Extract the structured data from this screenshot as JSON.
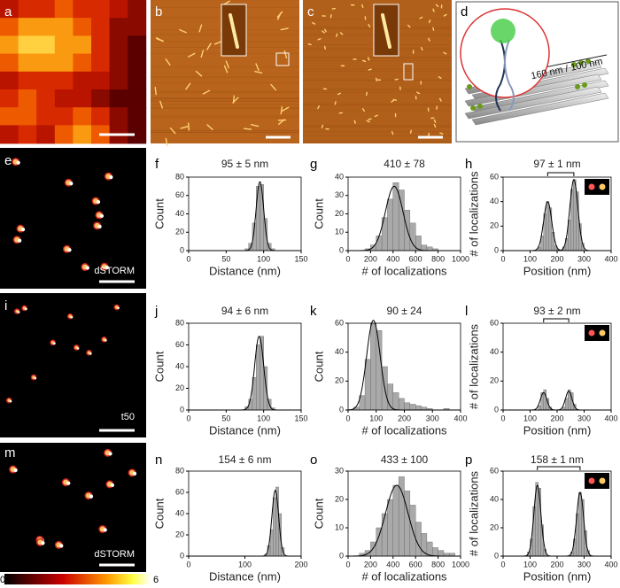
{
  "panel_labels": [
    "a",
    "b",
    "c",
    "d",
    "e",
    "f",
    "g",
    "h",
    "i",
    "j",
    "k",
    "l",
    "m",
    "n",
    "o",
    "p"
  ],
  "diagram": {
    "label": "160 nm / 100 nm"
  },
  "image_captions": {
    "e": "dSTORM",
    "i": "t50",
    "m": "dSTORM"
  },
  "colorbar": {
    "min": 0,
    "max": 6
  },
  "chart_data": [
    {
      "type": "histogram",
      "title": "95 ± 5 nm",
      "x_label": "Distance (nm)",
      "y_label": "Count",
      "bins": [
        75,
        80,
        85,
        90,
        95,
        100,
        105,
        110,
        115
      ],
      "values": [
        2,
        8,
        30,
        70,
        72,
        35,
        8,
        2
      ],
      "color": "#a9a9a9",
      "fit": [
        {
          "mean": 95,
          "sd": 5,
          "height": 75
        }
      ],
      "xlim": [
        0,
        150
      ],
      "xticks": [
        0,
        50,
        100,
        150
      ],
      "ylim": [
        0,
        80
      ],
      "yticks": [
        0,
        20,
        40,
        60,
        80
      ]
    },
    {
      "type": "histogram",
      "title": "410 ± 78",
      "x_label": "# of localizations",
      "y_label": "Count",
      "bins": [
        150,
        200,
        250,
        300,
        350,
        400,
        450,
        500,
        550,
        600,
        650,
        700,
        750,
        800
      ],
      "values": [
        1,
        3,
        8,
        18,
        28,
        37,
        33,
        22,
        15,
        8,
        3,
        2,
        1
      ],
      "color": "#a9a9a9",
      "fit": [
        {
          "mean": 410,
          "sd": 78,
          "height": 35
        }
      ],
      "xlim": [
        0,
        1000
      ],
      "xticks": [
        0,
        200,
        400,
        600,
        800,
        1000
      ],
      "ylim": [
        0,
        40
      ],
      "yticks": [
        0,
        10,
        20,
        30,
        40
      ]
    },
    {
      "type": "histogram",
      "title": "97 ± 1 nm",
      "x_label": "Position (nm)",
      "y_label": "# of localizations",
      "bins": [
        130,
        140,
        150,
        160,
        170,
        180,
        190,
        200,
        210,
        220,
        230,
        240,
        250,
        260,
        270,
        280,
        290,
        300
      ],
      "values": [
        3,
        12,
        30,
        40,
        35,
        15,
        4,
        1,
        0,
        3,
        10,
        25,
        50,
        58,
        48,
        22,
        6
      ],
      "color": "#a9a9a9",
      "fit": [
        {
          "mean": 165,
          "sd": 15,
          "height": 40
        },
        {
          "mean": 262,
          "sd": 15,
          "height": 58
        }
      ],
      "xlim": [
        0,
        400
      ],
      "xticks": [
        0,
        100,
        200,
        300,
        400
      ],
      "ylim": [
        0,
        60
      ],
      "yticks": [
        0,
        20,
        40,
        60
      ]
    },
    {
      "type": "histogram",
      "title": "94 ± 6 nm",
      "x_label": "Distance (nm)",
      "y_label": "Count",
      "bins": [
        75,
        80,
        85,
        90,
        95,
        100,
        105,
        110,
        115
      ],
      "values": [
        3,
        10,
        30,
        60,
        68,
        40,
        10,
        2
      ],
      "color": "#a9a9a9",
      "fit": [
        {
          "mean": 94,
          "sd": 6,
          "height": 68
        }
      ],
      "xlim": [
        0,
        150
      ],
      "xticks": [
        0,
        50,
        100,
        150
      ],
      "ylim": [
        0,
        80
      ],
      "yticks": [
        0,
        20,
        40,
        60,
        80
      ]
    },
    {
      "type": "histogram",
      "title": "90 ± 24",
      "x_label": "# of localizations",
      "y_label": "Count",
      "bins": [
        20,
        40,
        60,
        80,
        100,
        120,
        140,
        160,
        180,
        200,
        220,
        240,
        260,
        280,
        300,
        320,
        340,
        360
      ],
      "values": [
        2,
        10,
        35,
        60,
        55,
        30,
        18,
        12,
        8,
        5,
        4,
        3,
        2,
        1,
        0,
        0,
        1
      ],
      "color": "#a9a9a9",
      "fit": [
        {
          "mean": 90,
          "sd": 24,
          "height": 62
        }
      ],
      "xlim": [
        0,
        400
      ],
      "xticks": [
        0,
        100,
        200,
        300,
        400
      ],
      "ylim": [
        0,
        60
      ],
      "yticks": [
        0,
        20,
        40,
        60
      ]
    },
    {
      "type": "histogram",
      "title": "93 ± 2 nm",
      "x_label": "Position (nm)",
      "y_label": "# of localizations",
      "bins": [
        130,
        140,
        150,
        160,
        170,
        180,
        190,
        200,
        210,
        220,
        230,
        240,
        250,
        260,
        270
      ],
      "values": [
        3,
        12,
        14,
        8,
        2,
        0,
        0,
        0,
        0,
        2,
        8,
        14,
        12,
        4
      ],
      "color": "#a9a9a9",
      "fit": [
        {
          "mean": 150,
          "sd": 12,
          "height": 12
        },
        {
          "mean": 243,
          "sd": 12,
          "height": 13
        }
      ],
      "xlim": [
        0,
        400
      ],
      "xticks": [
        0,
        100,
        200,
        300,
        400
      ],
      "ylim": [
        0,
        60
      ],
      "yticks": [
        0,
        20,
        40,
        60
      ]
    },
    {
      "type": "histogram",
      "title": "154 ± 6 nm",
      "x_label": "Distance (nm)",
      "y_label": "Count",
      "bins": [
        135,
        140,
        145,
        150,
        155,
        160,
        165,
        170
      ],
      "values": [
        2,
        10,
        25,
        55,
        65,
        40,
        8
      ],
      "color": "#a9a9a9",
      "fit": [
        {
          "mean": 154,
          "sd": 6,
          "height": 62
        }
      ],
      "xlim": [
        0,
        200
      ],
      "xticks": [
        0,
        100,
        200
      ],
      "ylim": [
        0,
        80
      ],
      "yticks": [
        0,
        20,
        40,
        60,
        80
      ]
    },
    {
      "type": "histogram",
      "title": "433 ± 100",
      "x_label": "# of localizations",
      "y_label": "Count",
      "bins": [
        100,
        150,
        200,
        250,
        300,
        350,
        400,
        450,
        500,
        550,
        600,
        650,
        700,
        750,
        800,
        850,
        900,
        950
      ],
      "values": [
        1,
        2,
        5,
        10,
        15,
        20,
        25,
        28,
        23,
        18,
        12,
        8,
        5,
        3,
        2,
        1,
        1
      ],
      "color": "#a9a9a9",
      "fit": [
        {
          "mean": 433,
          "sd": 100,
          "height": 25
        }
      ],
      "xlim": [
        0,
        1000
      ],
      "xticks": [
        0,
        200,
        400,
        600,
        800,
        1000
      ],
      "ylim": [
        0,
        30
      ],
      "yticks": [
        0,
        10,
        20,
        30
      ]
    },
    {
      "type": "histogram",
      "title": "158 ± 1 nm",
      "x_label": "Position (nm)",
      "y_label": "# of localizations",
      "bins": [
        90,
        100,
        110,
        120,
        130,
        140,
        150,
        160,
        170,
        180,
        190,
        200,
        210,
        220,
        230,
        240,
        250,
        260,
        270,
        280,
        290,
        300,
        310,
        320
      ],
      "values": [
        3,
        12,
        35,
        52,
        48,
        22,
        5,
        0,
        0,
        0,
        0,
        0,
        0,
        0,
        0,
        0,
        3,
        12,
        30,
        45,
        40,
        18,
        4
      ],
      "color": "#a9a9a9",
      "fit": [
        {
          "mean": 127,
          "sd": 13,
          "height": 50
        },
        {
          "mean": 285,
          "sd": 13,
          "height": 45
        }
      ],
      "xlim": [
        0,
        400
      ],
      "xticks": [
        0,
        100,
        200,
        300,
        400
      ],
      "ylim": [
        0,
        60
      ],
      "yticks": [
        0,
        20,
        40,
        60
      ]
    }
  ]
}
